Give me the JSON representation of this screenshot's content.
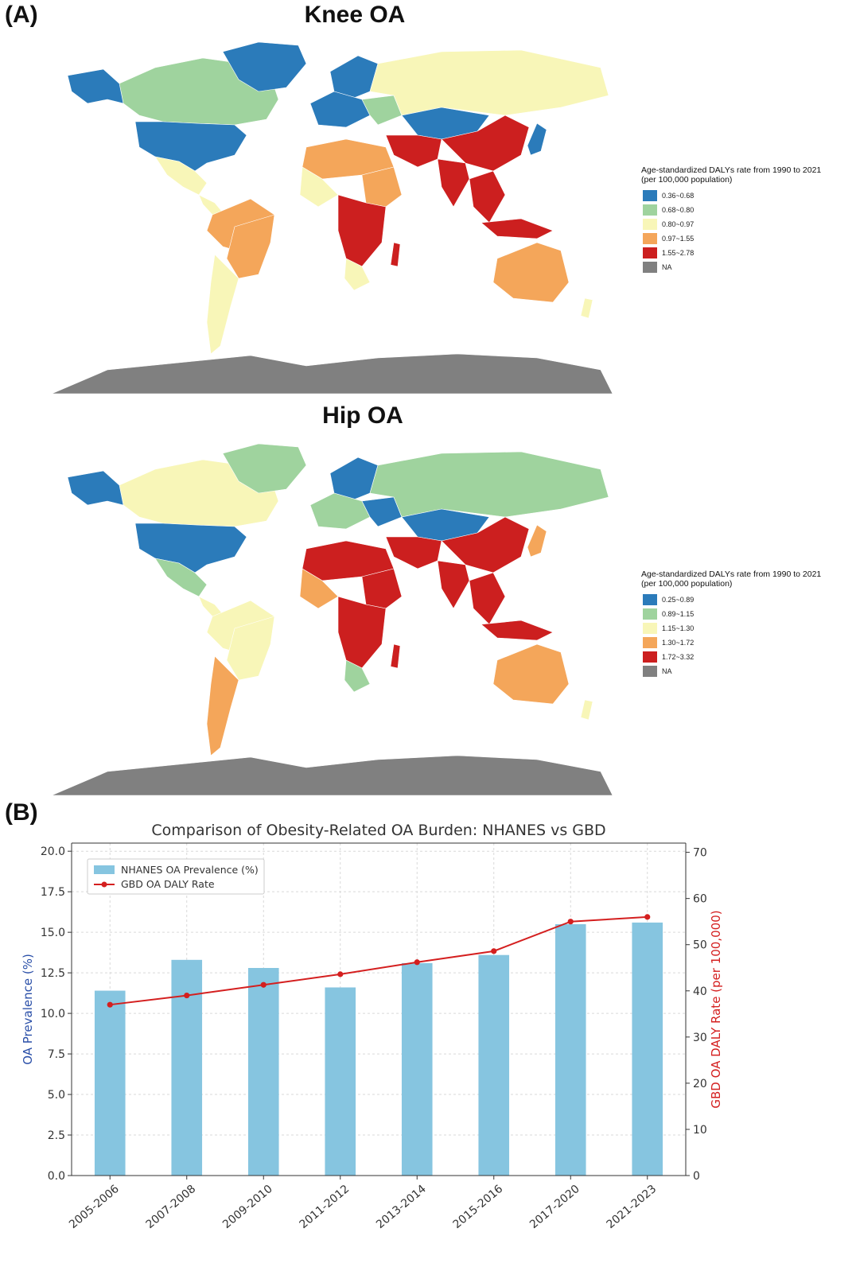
{
  "panel_a_label": "(A)",
  "panel_b_label": "(B)",
  "colors": {
    "blue": "#2b7bba",
    "green": "#9fd39e",
    "yellow": "#f8f6b8",
    "orange": "#f4a65a",
    "red": "#cc1f1f",
    "na": "#808080",
    "bar": "#86c5e0",
    "line": "#d41f1f"
  },
  "maps": [
    {
      "title": "Knee OA",
      "legend_title_1": "Age-standardized DALYs rate from 1990 to 2021",
      "legend_title_2": "(per 100,000 population)",
      "legend": [
        {
          "label": "0.36~0.68",
          "color": "#2b7bba"
        },
        {
          "label": "0.68~0.80",
          "color": "#9fd39e"
        },
        {
          "label": "0.80~0.97",
          "color": "#f8f6b8"
        },
        {
          "label": "0.97~1.55",
          "color": "#f4a65a"
        },
        {
          "label": "1.55~2.78",
          "color": "#cc1f1f"
        },
        {
          "label": "NA",
          "color": "#808080"
        }
      ]
    },
    {
      "title": "Hip OA",
      "legend_title_1": "Age-standardized DALYs rate from 1990 to 2021",
      "legend_title_2": "(per 100,000 population)",
      "legend": [
        {
          "label": "0.25~0.89",
          "color": "#2b7bba"
        },
        {
          "label": "0.89~1.15",
          "color": "#9fd39e"
        },
        {
          "label": "1.15~1.30",
          "color": "#f8f6b8"
        },
        {
          "label": "1.30~1.72",
          "color": "#f4a65a"
        },
        {
          "label": "1.72~3.32",
          "color": "#cc1f1f"
        },
        {
          "label": "NA",
          "color": "#808080"
        }
      ]
    }
  ],
  "chart_data": {
    "type": "bar",
    "title": "Comparison of Obesity-Related OA Burden: NHANES vs GBD",
    "categories": [
      "2005-2006",
      "2007-2008",
      "2009-2010",
      "2011-2012",
      "2013-2014",
      "2015-2016",
      "2017-2020",
      "2021-2023"
    ],
    "series": [
      {
        "name": "NHANES OA Prevalence (%)",
        "type": "bar",
        "axis": "left",
        "values": [
          11.4,
          13.3,
          12.8,
          11.6,
          13.1,
          13.6,
          15.5,
          15.6
        ]
      },
      {
        "name": "GBD OA DALY Rate",
        "type": "line",
        "axis": "right",
        "values": [
          37.0,
          39.0,
          41.3,
          43.6,
          46.2,
          48.6,
          55.0,
          56.0
        ]
      }
    ],
    "ylabel": "OA Prevalence (%)",
    "ylabel_right": "GBD OA DALY Rate (per 100,000)",
    "ylim": [
      0,
      20.5
    ],
    "ylim_right": [
      0,
      72
    ],
    "yticks": [
      "0.0",
      "2.5",
      "5.0",
      "7.5",
      "10.0",
      "12.5",
      "15.0",
      "17.5",
      "20.0"
    ],
    "yticks_right": [
      "0",
      "10",
      "20",
      "30",
      "40",
      "50",
      "60",
      "70"
    ],
    "grid": true,
    "legend_position": "upper-left"
  }
}
